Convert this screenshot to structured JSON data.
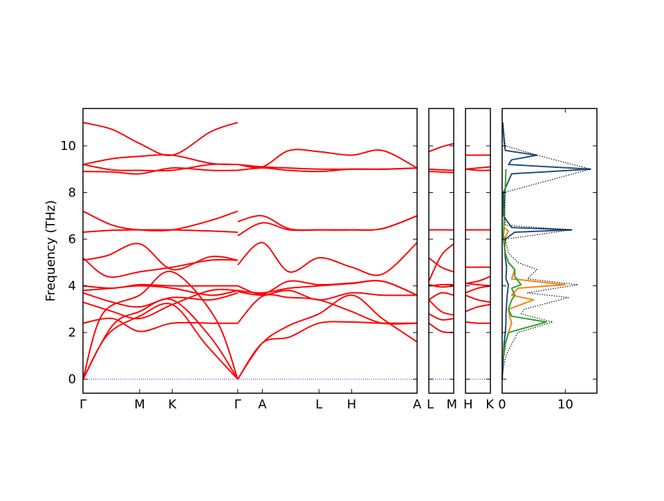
{
  "chart_data": {
    "type": "line",
    "subtype": "phonon-band-structure-with-dos",
    "ylabel": "Frequency (THz)",
    "ylim": [
      -0.6,
      11.6
    ],
    "yticks": [
      0,
      2,
      4,
      6,
      8,
      10
    ],
    "band_color": "#ff0000",
    "zero_line_color": "#0000ff",
    "panels": [
      {
        "id": "main",
        "kpoints": [
          {
            "label": "Γ",
            "x": 0
          },
          {
            "label": "M",
            "x": 0.577
          },
          {
            "label": "K",
            "x": 0.91
          },
          {
            "label": "Γ",
            "x": 1.577
          },
          {
            "label": "A",
            "x": 1.828
          },
          {
            "label": "L",
            "x": 2.405
          },
          {
            "label": "H",
            "x": 2.738
          },
          {
            "label": "A",
            "x": 3.405
          }
        ],
        "xlim": [
          0,
          3.405
        ],
        "bands": [
          {
            "x": [
              0,
              0.25,
              0.577,
              0.91,
              1.25,
              1.577
            ],
            "y": [
              0,
              1.9,
              2.7,
              3.2,
              1.5,
              0
            ]
          },
          {
            "x": [
              0,
              0.3,
              0.577,
              0.91,
              1.3,
              1.577
            ],
            "y": [
              0,
              2.3,
              2.9,
              3.4,
              1.8,
              0
            ]
          },
          {
            "x": [
              0,
              0.2,
              0.577,
              0.91,
              1.35,
              1.577
            ],
            "y": [
              0,
              2.8,
              3.6,
              4.6,
              2.6,
              0
            ]
          },
          {
            "x": [
              0,
              0.3,
              0.577,
              0.91,
              1.3,
              1.577
            ],
            "y": [
              2.4,
              2.6,
              2.05,
              2.4,
              2.4,
              2.4
            ]
          },
          {
            "x": [
              0,
              0.3,
              0.577,
              0.91,
              1.3,
              1.577
            ],
            "y": [
              3.3,
              2.9,
              2.6,
              3.2,
              3.8,
              3.8
            ]
          },
          {
            "x": [
              0,
              0.3,
              0.577,
              0.91,
              1.3,
              1.577
            ],
            "y": [
              3.7,
              3.3,
              3.1,
              3.5,
              3.4,
              3.7
            ]
          },
          {
            "x": [
              0,
              0.3,
              0.577,
              0.91,
              1.3,
              1.577
            ],
            "y": [
              3.8,
              3.9,
              4.0,
              3.9,
              3.6,
              3.8
            ]
          },
          {
            "x": [
              0,
              0.3,
              0.577,
              0.91,
              1.3,
              1.577
            ],
            "y": [
              4.0,
              3.9,
              4.05,
              4.0,
              4.0,
              4.0
            ]
          },
          {
            "x": [
              0,
              0.25,
              0.577,
              0.91,
              1.3,
              1.577
            ],
            "y": [
              5.2,
              4.4,
              4.6,
              4.8,
              5.1,
              5.1
            ]
          },
          {
            "x": [
              0,
              0.25,
              0.577,
              0.91,
              1.3,
              1.577
            ],
            "y": [
              5.1,
              5.3,
              5.8,
              4.7,
              5.25,
              5.1
            ]
          },
          {
            "x": [
              0,
              0.3,
              0.577,
              0.91,
              1.3,
              1.577
            ],
            "y": [
              6.3,
              6.38,
              6.4,
              6.4,
              6.35,
              6.3
            ]
          },
          {
            "x": [
              0,
              0.3,
              0.577,
              0.91,
              1.3,
              1.577
            ],
            "y": [
              7.2,
              6.6,
              6.4,
              6.4,
              6.8,
              7.2
            ]
          },
          {
            "x": [
              0,
              0.3,
              0.577,
              0.91,
              1.3,
              1.577
            ],
            "y": [
              8.9,
              8.88,
              8.8,
              9.05,
              8.95,
              8.95
            ]
          },
          {
            "x": [
              0,
              0.3,
              0.577,
              0.91,
              1.3,
              1.577
            ],
            "y": [
              9.2,
              8.97,
              8.95,
              8.95,
              9.2,
              9.2
            ]
          },
          {
            "x": [
              0,
              0.3,
              0.577,
              0.91,
              1.3,
              1.577
            ],
            "y": [
              9.2,
              9.45,
              9.55,
              9.6,
              9.25,
              9.2
            ]
          },
          {
            "x": [
              0,
              0.3,
              0.577,
              0.91,
              1.3,
              1.577
            ],
            "y": [
              11.0,
              10.7,
              10.1,
              9.6,
              10.6,
              11.0
            ]
          },
          {
            "x": [
              1.577,
              1.828,
              2.1,
              2.405,
              2.738,
              3.05,
              3.405
            ],
            "y": [
              0,
              1.55,
              1.8,
              2.4,
              2.45,
              2.4,
              2.4
            ]
          },
          {
            "x": [
              1.577,
              1.828,
              2.1,
              2.405,
              2.738,
              3.05,
              3.405
            ],
            "y": [
              0,
              1.55,
              2.3,
              2.8,
              3.6,
              2.6,
              1.6
            ]
          },
          {
            "x": [
              1.577,
              1.828,
              2.1,
              2.405,
              2.738,
              3.05,
              3.405
            ],
            "y": [
              2.4,
              3.55,
              3.5,
              3.4,
              2.9,
              2.4,
              2.4
            ]
          },
          {
            "x": [
              1.577,
              1.828,
              2.1,
              2.405,
              2.738,
              3.05,
              3.405
            ],
            "y": [
              3.75,
              3.6,
              3.8,
              3.4,
              3.7,
              3.6,
              3.6
            ]
          },
          {
            "x": [
              1.577,
              1.828,
              2.1,
              2.405,
              2.738,
              3.05,
              3.405
            ],
            "y": [
              3.8,
              3.7,
              3.9,
              4.0,
              4.1,
              4.2,
              3.6
            ]
          },
          {
            "x": [
              1.577,
              1.828,
              2.1,
              2.405,
              2.738,
              3.05,
              3.405
            ],
            "y": [
              4.0,
              3.65,
              4.2,
              4.05,
              4.12,
              4.2,
              3.6
            ]
          },
          {
            "x": [
              1.577,
              1.828,
              2.1,
              2.405,
              2.738,
              3.05,
              3.405
            ],
            "y": [
              4.9,
              5.85,
              4.6,
              5.2,
              4.8,
              4.5,
              5.85
            ]
          },
          {
            "x": [
              1.577,
              1.828,
              2.1,
              2.405,
              2.738,
              3.05,
              3.405
            ],
            "y": [
              6.15,
              6.7,
              6.4,
              6.4,
              6.4,
              6.45,
              7.0
            ]
          },
          {
            "x": [
              1.577,
              1.828,
              2.1,
              2.405,
              2.738,
              3.05,
              3.405
            ],
            "y": [
              6.75,
              7.0,
              6.45,
              6.4,
              6.4,
              6.45,
              7.0
            ]
          },
          {
            "x": [
              1.577,
              1.828,
              2.1,
              2.405,
              2.738,
              3.05,
              3.405
            ],
            "y": [
              8.95,
              9.05,
              8.95,
              8.9,
              9.0,
              9.0,
              9.05
            ]
          },
          {
            "x": [
              1.577,
              1.828,
              2.1,
              2.405,
              2.738,
              3.05,
              3.405
            ],
            "y": [
              9.2,
              9.1,
              9.05,
              9.0,
              9.0,
              9.0,
              9.05
            ]
          },
          {
            "x": [
              1.577,
              1.828,
              2.1,
              2.405,
              2.738,
              3.05,
              3.405
            ],
            "y": [
              9.2,
              9.1,
              9.8,
              9.75,
              9.6,
              9.8,
              9.05
            ]
          }
        ]
      },
      {
        "id": "L-M",
        "kpoints": [
          {
            "label": "L",
            "x": 0
          },
          {
            "label": "M",
            "x": 1
          }
        ],
        "xlim": [
          0,
          1
        ],
        "bands": [
          {
            "x": [
              0,
              0.5,
              1
            ],
            "y": [
              2.4,
              2.05,
              2.0
            ]
          },
          {
            "x": [
              0,
              0.5,
              1
            ],
            "y": [
              2.8,
              2.55,
              2.6
            ]
          },
          {
            "x": [
              0,
              0.5,
              1
            ],
            "y": [
              3.4,
              2.9,
              2.75
            ]
          },
          {
            "x": [
              0,
              0.5,
              1
            ],
            "y": [
              3.4,
              3.7,
              3.6
            ]
          },
          {
            "x": [
              0,
              0.5,
              1
            ],
            "y": [
              4.0,
              4.05,
              4.05
            ]
          },
          {
            "x": [
              0,
              0.5,
              1
            ],
            "y": [
              4.05,
              3.95,
              4.0
            ]
          },
          {
            "x": [
              0,
              0.5,
              1
            ],
            "y": [
              5.2,
              4.8,
              4.6
            ]
          },
          {
            "x": [
              0,
              0.5,
              1
            ],
            "y": [
              4.2,
              5.3,
              5.8
            ]
          },
          {
            "x": [
              0,
              0.5,
              1
            ],
            "y": [
              6.4,
              6.4,
              6.4
            ]
          },
          {
            "x": [
              0,
              0.5,
              1
            ],
            "y": [
              8.9,
              8.88,
              8.85
            ]
          },
          {
            "x": [
              0,
              0.5,
              1
            ],
            "y": [
              9.0,
              8.97,
              8.95
            ]
          },
          {
            "x": [
              0,
              0.5,
              1
            ],
            "y": [
              9.75,
              9.95,
              10.1
            ]
          }
        ]
      },
      {
        "id": "H-K",
        "kpoints": [
          {
            "label": "H",
            "x": 0
          },
          {
            "label": "K",
            "x": 1
          }
        ],
        "xlim": [
          0,
          1
        ],
        "bands": [
          {
            "x": [
              0,
              0.5,
              1
            ],
            "y": [
              2.45,
              2.4,
              2.4
            ]
          },
          {
            "x": [
              0,
              0.5,
              1
            ],
            "y": [
              2.9,
              3.1,
              3.2
            ]
          },
          {
            "x": [
              0,
              0.5,
              1
            ],
            "y": [
              3.6,
              3.4,
              3.3
            ]
          },
          {
            "x": [
              0,
              0.5,
              1
            ],
            "y": [
              3.7,
              3.9,
              4.0
            ]
          },
          {
            "x": [
              0,
              0.5,
              1
            ],
            "y": [
              4.1,
              4.05,
              4.0
            ]
          },
          {
            "x": [
              0,
              0.5,
              1
            ],
            "y": [
              4.1,
              4.2,
              4.4
            ]
          },
          {
            "x": [
              0,
              0.5,
              1
            ],
            "y": [
              4.8,
              4.8,
              4.8
            ]
          },
          {
            "x": [
              0,
              0.5,
              1
            ],
            "y": [
              6.4,
              6.4,
              6.4
            ]
          },
          {
            "x": [
              0,
              0.5,
              1
            ],
            "y": [
              9.0,
              8.95,
              8.95
            ]
          },
          {
            "x": [
              0,
              0.5,
              1
            ],
            "y": [
              9.0,
              9.05,
              9.1
            ]
          },
          {
            "x": [
              0,
              0.5,
              1
            ],
            "y": [
              9.6,
              9.6,
              9.6
            ]
          }
        ]
      }
    ],
    "dos": {
      "xlim": [
        0,
        15
      ],
      "xticks": [
        0,
        10
      ],
      "series": [
        {
          "color": "#1f4e79",
          "style": "solid",
          "y": [
            0,
            0.5,
            1,
            1.5,
            2,
            2.4,
            2.8,
            3.2,
            3.6,
            4.05,
            4.3,
            4.8,
            5.2,
            5.6,
            6.0,
            6.3,
            6.4,
            6.5,
            7.0,
            8.0,
            8.8,
            9.0,
            9.2,
            9.4,
            9.6,
            9.8,
            10.2,
            10.6,
            11.0
          ],
          "x": [
            0,
            0.1,
            0.2,
            0.3,
            0.5,
            0.6,
            0.6,
            0.7,
            0.8,
            1.0,
            0.6,
            0.7,
            0.5,
            0.4,
            0.5,
            2.0,
            11.0,
            1.5,
            0.2,
            0.2,
            1.5,
            14.0,
            1.0,
            1.5,
            5.5,
            0.5,
            0.3,
            0.2,
            0.1
          ]
        },
        {
          "color": "#ff7f0e",
          "style": "solid",
          "y": [
            1.0,
            1.5,
            2.0,
            2.4,
            2.7,
            3.0,
            3.4,
            3.6,
            3.9,
            4.05,
            4.3,
            4.7,
            5.0,
            5.4,
            6.0,
            6.35,
            6.5
          ],
          "x": [
            0.3,
            0.5,
            1.0,
            1.5,
            1.2,
            1.0,
            5.0,
            1.5,
            2.5,
            10.0,
            1.5,
            2.0,
            1.0,
            0.5,
            0.3,
            1.0,
            0.2
          ]
        },
        {
          "color": "#2ca02c",
          "style": "solid",
          "y": [
            1.0,
            1.5,
            2.0,
            2.45,
            2.7,
            3.0,
            3.4,
            3.6,
            3.9,
            4.05,
            4.4,
            4.7,
            5.0,
            5.4,
            6.0,
            9.0
          ],
          "x": [
            0.2,
            0.5,
            1.0,
            7.0,
            1.5,
            1.0,
            1.5,
            2.0,
            1.5,
            3.0,
            2.0,
            2.0,
            1.0,
            0.5,
            0.2,
            0.6
          ]
        },
        {
          "color": "#000000",
          "style": "dotted",
          "y": [
            0,
            0.5,
            1,
            1.5,
            2,
            2.45,
            2.8,
            3.0,
            3.5,
            3.7,
            4.05,
            4.3,
            4.7,
            5.0,
            5.4,
            6.0,
            6.4,
            6.6,
            8.0,
            9.0,
            9.6,
            10.0,
            11.0
          ],
          "x": [
            0,
            0.2,
            0.6,
            1.5,
            2.5,
            8.0,
            3.0,
            3.5,
            10.5,
            4.0,
            12.0,
            4.0,
            5.5,
            2.5,
            1.0,
            0.5,
            11.0,
            0.5,
            0.3,
            14.0,
            5.5,
            0.5,
            0.1
          ]
        }
      ]
    }
  }
}
